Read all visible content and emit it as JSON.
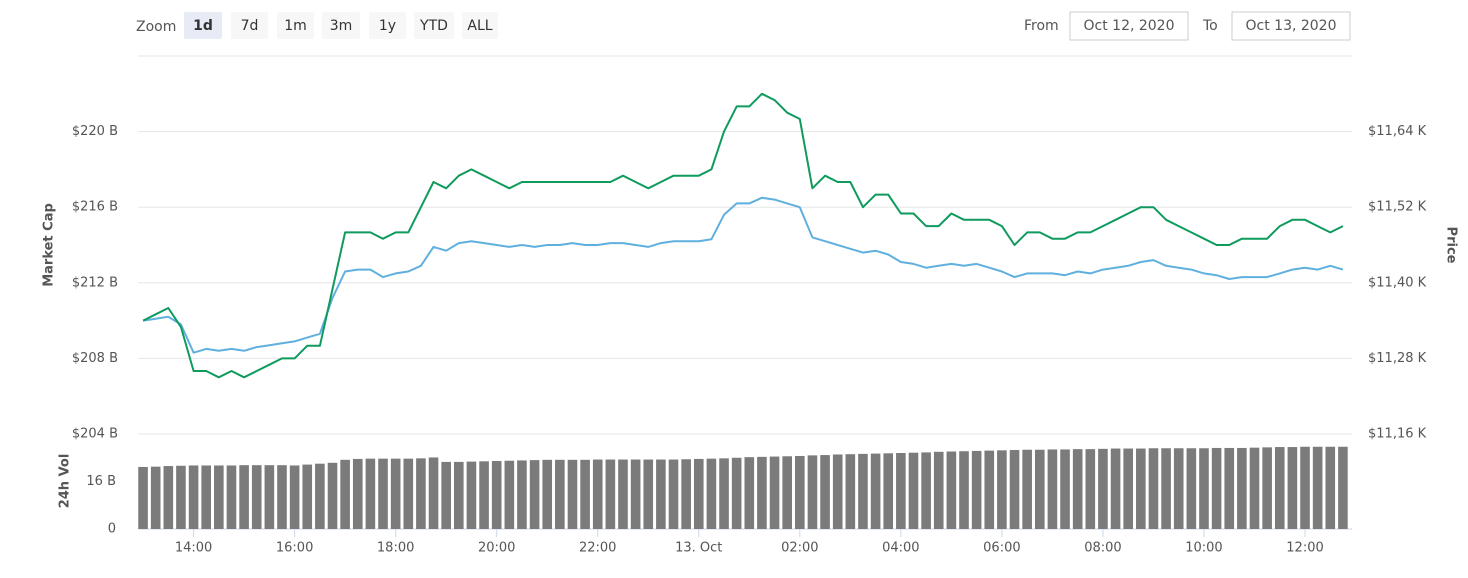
{
  "toolbar": {
    "zoom_label": "Zoom",
    "buttons": [
      "1d",
      "7d",
      "1m",
      "3m",
      "1y",
      "YTD",
      "ALL"
    ],
    "selected": 0,
    "from_label": "From",
    "from_value": "Oct 12, 2020",
    "to_label": "To",
    "to_value": "Oct 13, 2020"
  },
  "chart_data": [
    {
      "type": "line",
      "ylabel": "Market Cap",
      "y2label": "Price",
      "x": [
        13,
        13.25,
        13.5,
        13.75,
        14,
        14.25,
        14.5,
        14.75,
        15,
        15.25,
        15.5,
        15.75,
        16,
        16.25,
        16.5,
        16.75,
        17,
        17.25,
        17.5,
        17.75,
        18,
        18.25,
        18.5,
        18.75,
        19,
        19.25,
        19.5,
        19.75,
        20,
        20.25,
        20.5,
        20.75,
        21,
        21.25,
        21.5,
        21.75,
        22,
        22.25,
        22.5,
        22.75,
        23,
        23.25,
        23.5,
        23.75,
        24,
        24.25,
        24.5,
        24.75,
        25,
        25.25,
        25.5,
        25.75,
        26,
        26.25,
        26.5,
        26.75,
        27,
        27.25,
        27.5,
        27.75,
        28,
        28.25,
        28.5,
        28.75,
        29,
        29.25,
        29.5,
        29.75,
        30,
        30.25,
        30.5,
        30.75,
        31,
        31.25,
        31.5,
        31.75,
        32,
        32.25,
        32.5,
        32.75,
        33,
        33.25,
        33.5,
        33.75,
        34,
        34.25,
        34.5,
        34.75,
        35,
        35.25,
        35.5,
        35.75,
        36,
        36.25,
        36.5,
        36.75
      ],
      "xlim": [
        12.9,
        36.93
      ],
      "xticks": [
        {
          "value": 14,
          "label": "14:00"
        },
        {
          "value": 16,
          "label": "16:00"
        },
        {
          "value": 18,
          "label": "18:00"
        },
        {
          "value": 20,
          "label": "20:00"
        },
        {
          "value": 22,
          "label": "22:00"
        },
        {
          "value": 24,
          "label": "13. Oct"
        },
        {
          "value": 26,
          "label": "02:00"
        },
        {
          "value": 28,
          "label": "04:00"
        },
        {
          "value": 30,
          "label": "06:00"
        },
        {
          "value": 32,
          "label": "08:00"
        },
        {
          "value": 34,
          "label": "10:00"
        },
        {
          "value": 36,
          "label": "12:00"
        }
      ],
      "ylim": [
        204,
        224
      ],
      "yticks": [
        {
          "value": 204,
          "label": "$204 B"
        },
        {
          "value": 208,
          "label": "$208 B"
        },
        {
          "value": 212,
          "label": "$212 B"
        },
        {
          "value": 216,
          "label": "$216 B"
        },
        {
          "value": 220,
          "label": "$220 B"
        }
      ],
      "y2lim": [
        11.16,
        11.76
      ],
      "y2ticks": [
        {
          "value": 11.16,
          "label": "$11,16 K"
        },
        {
          "value": 11.28,
          "label": "$11,28 K"
        },
        {
          "value": 11.4,
          "label": "$11,40 K"
        },
        {
          "value": 11.52,
          "label": "$11,52 K"
        },
        {
          "value": 11.64,
          "label": "$11,64 K"
        }
      ],
      "grid": true,
      "series": [
        {
          "color": "#5fb0df",
          "values": [
            210.0,
            210.1,
            210.2,
            209.8,
            208.3,
            208.5,
            208.4,
            208.5,
            208.4,
            208.6,
            208.7,
            208.8,
            208.9,
            209.1,
            209.3,
            211.2,
            212.6,
            212.7,
            212.7,
            212.3,
            212.5,
            212.6,
            212.9,
            213.9,
            213.7,
            214.1,
            214.2,
            214.1,
            214.0,
            213.9,
            214.0,
            213.9,
            214.0,
            214.0,
            214.1,
            214.0,
            214.0,
            214.1,
            214.1,
            214.0,
            213.9,
            214.1,
            214.2,
            214.2,
            214.2,
            214.3,
            215.6,
            216.2,
            216.2,
            216.5,
            216.4,
            216.2,
            216.0,
            214.4,
            214.2,
            214.0,
            213.8,
            213.6,
            213.7,
            213.5,
            213.1,
            213.0,
            212.8,
            212.9,
            213.0,
            212.9,
            213.0,
            212.8,
            212.6,
            212.3,
            212.5,
            212.5,
            212.5,
            212.4,
            212.6,
            212.5,
            212.7,
            212.8,
            212.9,
            213.1,
            213.2,
            212.9,
            212.8,
            212.7,
            212.5,
            212.4,
            212.2,
            212.3,
            212.3,
            212.3,
            212.5,
            212.7,
            212.8,
            212.7,
            212.9,
            212.7
          ]
        },
        {
          "color": "#0f9a5e",
          "axis": "y2",
          "values": [
            11.34,
            11.35,
            11.36,
            11.33,
            11.26,
            11.26,
            11.25,
            11.26,
            11.25,
            11.26,
            11.27,
            11.28,
            11.28,
            11.3,
            11.3,
            11.39,
            11.48,
            11.48,
            11.48,
            11.47,
            11.48,
            11.48,
            11.52,
            11.56,
            11.55,
            11.57,
            11.58,
            11.57,
            11.56,
            11.55,
            11.56,
            11.56,
            11.56,
            11.56,
            11.56,
            11.56,
            11.56,
            11.56,
            11.57,
            11.56,
            11.55,
            11.56,
            11.57,
            11.57,
            11.57,
            11.58,
            11.64,
            11.68,
            11.68,
            11.7,
            11.69,
            11.67,
            11.66,
            11.55,
            11.57,
            11.56,
            11.56,
            11.52,
            11.54,
            11.54,
            11.51,
            11.51,
            11.49,
            11.49,
            11.51,
            11.5,
            11.5,
            11.5,
            11.49,
            11.46,
            11.48,
            11.48,
            11.47,
            11.47,
            11.48,
            11.48,
            11.49,
            11.5,
            11.51,
            11.52,
            11.52,
            11.5,
            11.49,
            11.48,
            11.47,
            11.46,
            11.46,
            11.47,
            11.47,
            11.47,
            11.49,
            11.5,
            11.5,
            11.49,
            11.48,
            11.49
          ]
        }
      ]
    },
    {
      "type": "bar",
      "ylabel": "24h Vol",
      "color": "#7b7b7b",
      "ylim": [
        0,
        32
      ],
      "yticks": [
        0,
        {
          "value": 16,
          "label": "16 B"
        }
      ],
      "values": [
        20.9,
        21.0,
        21.2,
        21.3,
        21.4,
        21.4,
        21.4,
        21.4,
        21.5,
        21.5,
        21.5,
        21.5,
        21.4,
        21.7,
        22.0,
        22.3,
        23.3,
        23.6,
        23.7,
        23.7,
        23.7,
        23.7,
        23.8,
        24.1,
        22.6,
        22.6,
        22.7,
        22.8,
        22.9,
        23.0,
        23.1,
        23.2,
        23.3,
        23.3,
        23.3,
        23.3,
        23.4,
        23.4,
        23.4,
        23.4,
        23.4,
        23.4,
        23.4,
        23.5,
        23.6,
        23.7,
        23.8,
        24.0,
        24.2,
        24.3,
        24.4,
        24.5,
        24.6,
        24.8,
        24.9,
        25.1,
        25.2,
        25.3,
        25.4,
        25.5,
        25.6,
        25.7,
        25.8,
        26.0,
        26.1,
        26.2,
        26.3,
        26.4,
        26.5,
        26.6,
        26.7,
        26.7,
        26.8,
        26.8,
        26.9,
        26.9,
        27.0,
        27.1,
        27.1,
        27.1,
        27.2,
        27.2,
        27.2,
        27.2,
        27.2,
        27.3,
        27.3,
        27.3,
        27.4,
        27.5,
        27.6,
        27.6,
        27.7,
        27.7,
        27.7,
        27.7
      ]
    }
  ]
}
